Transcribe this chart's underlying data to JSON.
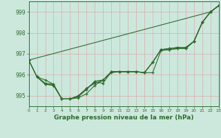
{
  "bg_color": "#cce8dd",
  "grid_color": "#ddaaaa",
  "line_color": "#2d6a2d",
  "marker_color": "#2d6a2d",
  "title": "Graphe pression niveau de la mer (hPa)",
  "xlim": [
    0,
    23
  ],
  "ylim": [
    994.5,
    999.5
  ],
  "yticks": [
    995,
    996,
    997,
    998,
    999
  ],
  "xticks": [
    0,
    1,
    2,
    3,
    4,
    5,
    6,
    7,
    8,
    9,
    10,
    11,
    12,
    13,
    14,
    15,
    16,
    17,
    18,
    19,
    20,
    21,
    22,
    23
  ],
  "lines": [
    {
      "x": [
        0,
        22,
        23
      ],
      "y": [
        996.7,
        999.0,
        999.3
      ]
    },
    {
      "x": [
        0,
        1,
        2,
        3,
        4,
        5,
        6,
        7,
        8,
        9,
        10,
        11,
        12,
        13,
        14,
        15,
        16,
        17,
        18,
        19,
        20,
        21,
        22,
        23
      ],
      "y": [
        996.7,
        995.9,
        995.75,
        995.55,
        994.85,
        994.85,
        994.9,
        995.1,
        995.5,
        995.75,
        996.15,
        996.15,
        996.15,
        996.15,
        996.1,
        996.6,
        997.2,
        997.25,
        997.3,
        997.3,
        997.6,
        998.5,
        999.0,
        999.3
      ]
    },
    {
      "x": [
        0,
        1,
        2,
        3,
        4,
        5,
        6,
        7,
        8,
        9,
        10,
        11,
        12,
        13,
        14,
        15,
        16,
        17,
        18,
        19,
        20,
        21,
        22,
        23
      ],
      "y": [
        996.7,
        995.9,
        995.6,
        995.55,
        994.85,
        994.85,
        994.95,
        995.3,
        995.7,
        995.75,
        996.15,
        996.15,
        996.15,
        996.15,
        996.1,
        996.6,
        997.2,
        997.25,
        997.3,
        997.3,
        997.6,
        998.5,
        999.0,
        999.3
      ]
    },
    {
      "x": [
        0,
        1,
        2,
        3,
        4,
        5,
        6,
        7,
        8,
        9,
        10,
        11,
        12,
        13,
        14,
        15,
        16,
        17,
        18,
        19,
        20,
        21,
        22,
        23
      ],
      "y": [
        996.7,
        995.9,
        995.55,
        995.5,
        994.85,
        994.85,
        995.0,
        995.35,
        995.65,
        995.6,
        996.15,
        996.15,
        996.15,
        996.15,
        996.1,
        996.6,
        997.2,
        997.2,
        997.25,
        997.25,
        997.6,
        998.5,
        999.0,
        999.3
      ]
    },
    {
      "x": [
        1,
        2,
        3,
        4,
        5,
        6,
        7,
        8,
        9,
        10,
        11,
        12,
        13,
        14,
        15,
        16,
        17,
        18,
        19,
        20,
        21,
        22,
        23
      ],
      "y": [
        995.9,
        995.55,
        995.5,
        994.85,
        994.85,
        995.0,
        995.35,
        995.6,
        995.75,
        996.1,
        996.15,
        996.15,
        996.15,
        996.1,
        996.1,
        997.15,
        997.2,
        997.25,
        997.25,
        997.6,
        998.5,
        999.0,
        999.3
      ]
    }
  ]
}
